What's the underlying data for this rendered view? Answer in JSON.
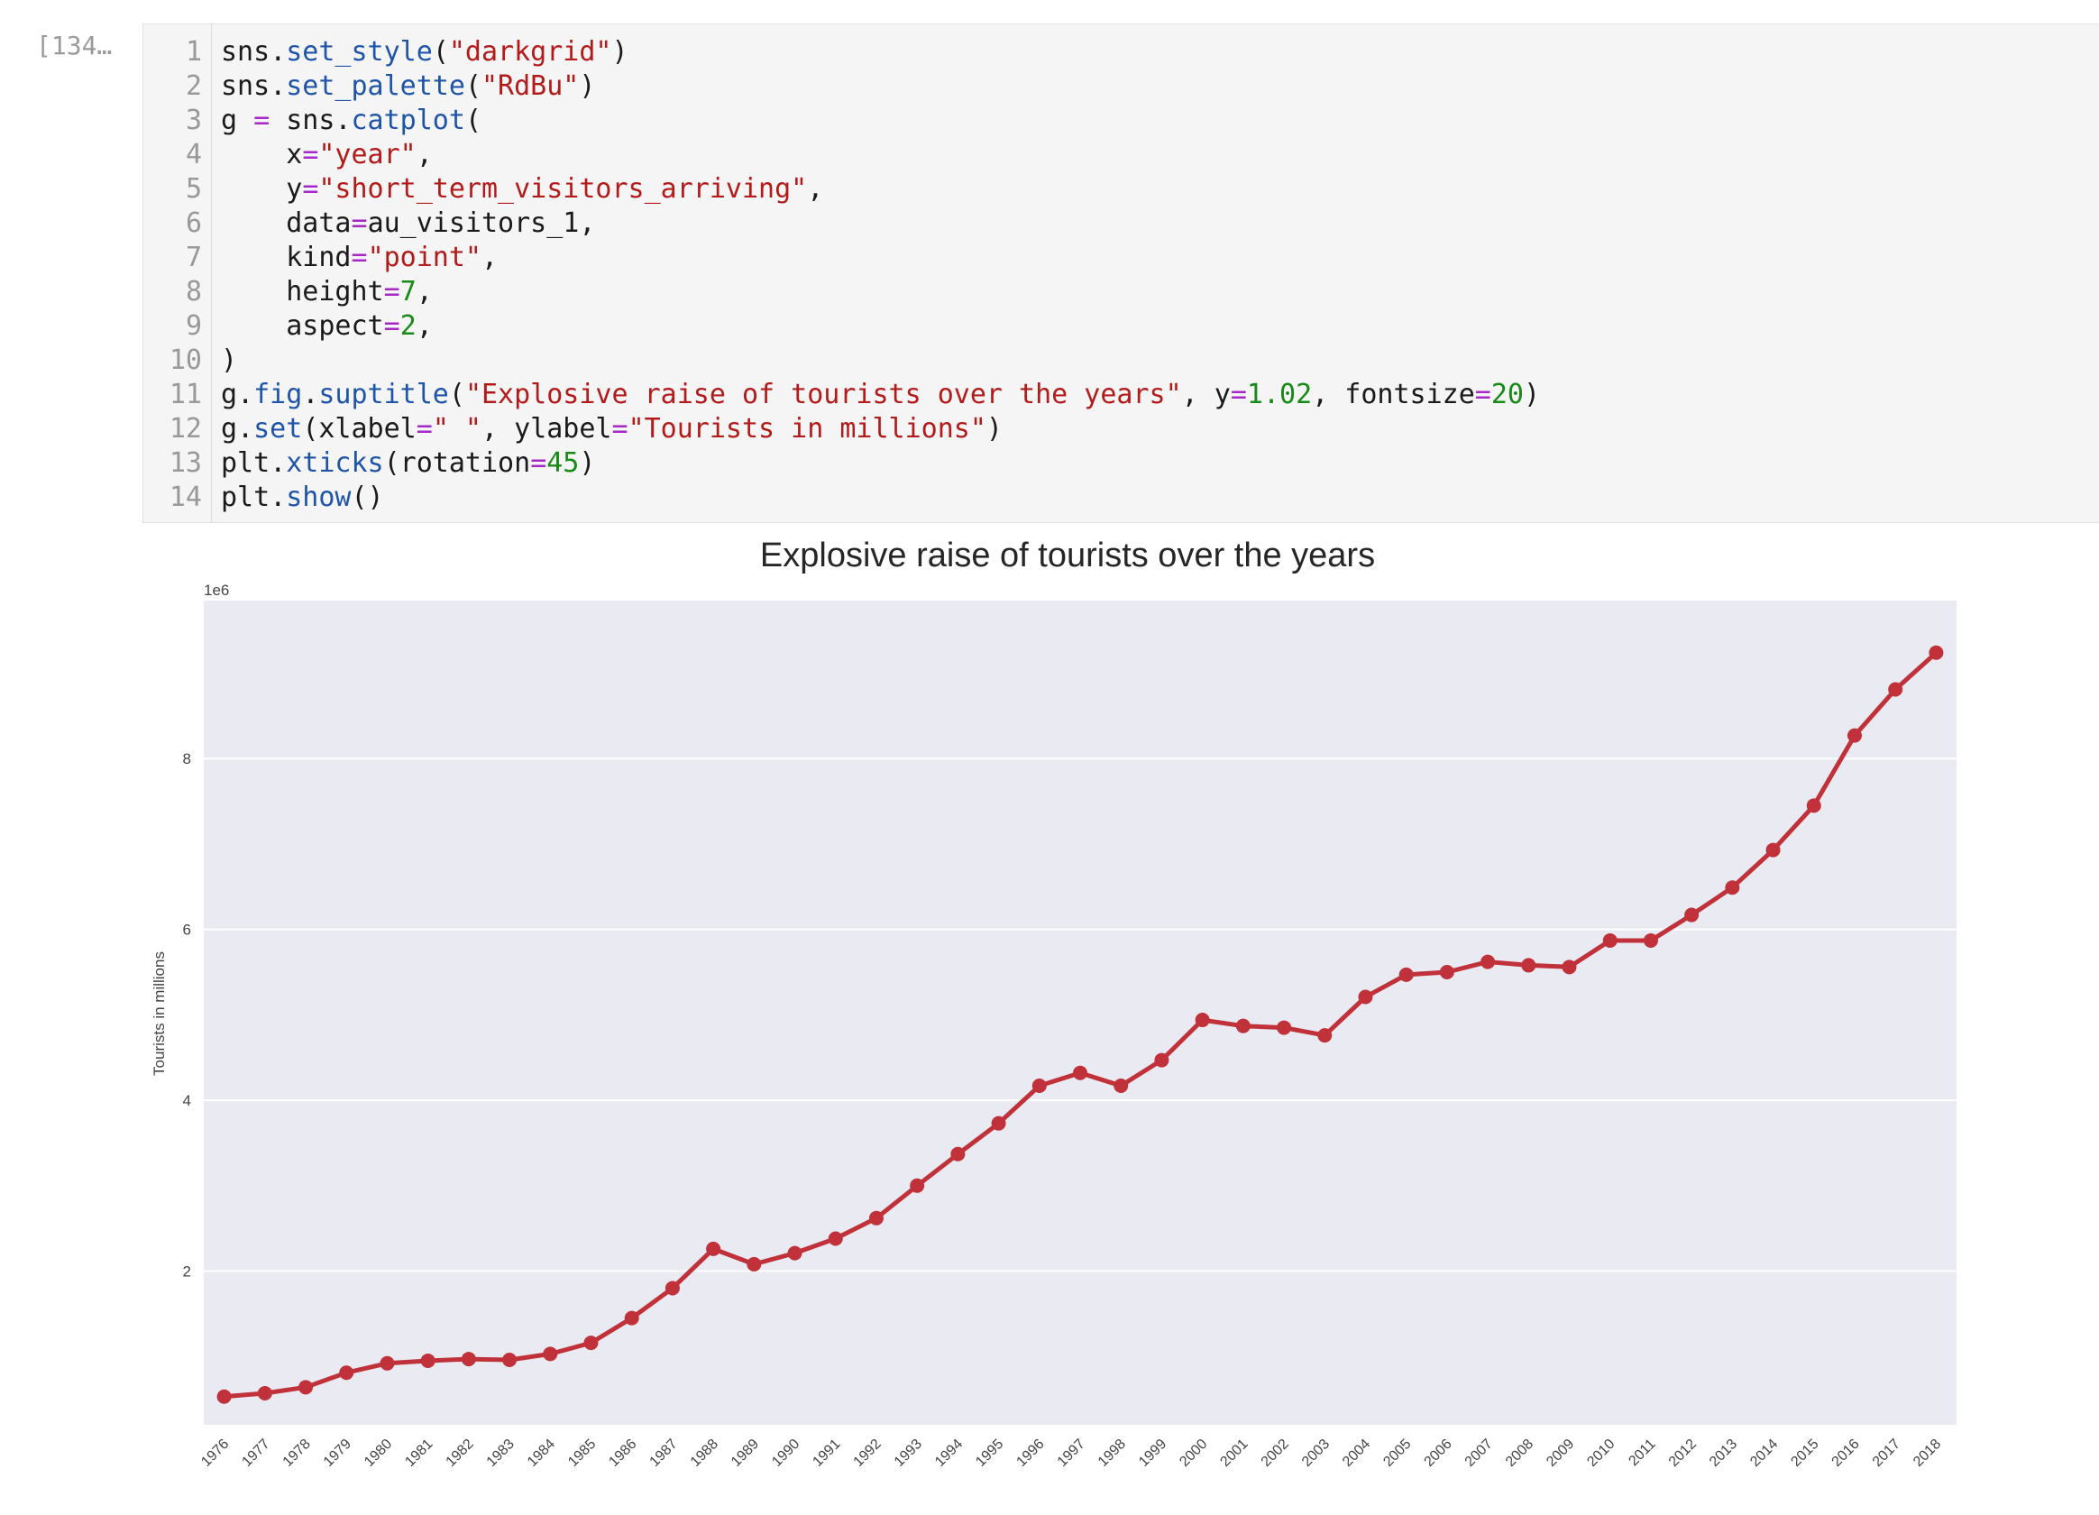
{
  "cell": {
    "execution_count": "[134…",
    "code_lines": [
      [
        {
          "t": "sns",
          "c": "plain"
        },
        {
          "t": ".",
          "c": "plain"
        },
        {
          "t": "set_style",
          "c": "fn"
        },
        {
          "t": "(",
          "c": "plain"
        },
        {
          "t": "\"darkgrid\"",
          "c": "str"
        },
        {
          "t": ")",
          "c": "plain"
        }
      ],
      [
        {
          "t": "sns",
          "c": "plain"
        },
        {
          "t": ".",
          "c": "plain"
        },
        {
          "t": "set_palette",
          "c": "fn"
        },
        {
          "t": "(",
          "c": "plain"
        },
        {
          "t": "\"RdBu\"",
          "c": "str"
        },
        {
          "t": ")",
          "c": "plain"
        }
      ],
      [
        {
          "t": "g ",
          "c": "plain"
        },
        {
          "t": "=",
          "c": "op"
        },
        {
          "t": " sns",
          "c": "plain"
        },
        {
          "t": ".",
          "c": "plain"
        },
        {
          "t": "catplot",
          "c": "fn"
        },
        {
          "t": "(",
          "c": "plain"
        }
      ],
      [
        {
          "t": "    x",
          "c": "plain"
        },
        {
          "t": "=",
          "c": "op"
        },
        {
          "t": "\"year\"",
          "c": "str"
        },
        {
          "t": ",",
          "c": "plain"
        }
      ],
      [
        {
          "t": "    y",
          "c": "plain"
        },
        {
          "t": "=",
          "c": "op"
        },
        {
          "t": "\"short_term_visitors_arriving\"",
          "c": "str"
        },
        {
          "t": ",",
          "c": "plain"
        }
      ],
      [
        {
          "t": "    data",
          "c": "plain"
        },
        {
          "t": "=",
          "c": "op"
        },
        {
          "t": "au_visitors_1,",
          "c": "plain"
        }
      ],
      [
        {
          "t": "    kind",
          "c": "plain"
        },
        {
          "t": "=",
          "c": "op"
        },
        {
          "t": "\"point\"",
          "c": "str"
        },
        {
          "t": ",",
          "c": "plain"
        }
      ],
      [
        {
          "t": "    height",
          "c": "plain"
        },
        {
          "t": "=",
          "c": "op"
        },
        {
          "t": "7",
          "c": "num"
        },
        {
          "t": ",",
          "c": "plain"
        }
      ],
      [
        {
          "t": "    aspect",
          "c": "plain"
        },
        {
          "t": "=",
          "c": "op"
        },
        {
          "t": "2",
          "c": "num"
        },
        {
          "t": ",",
          "c": "plain"
        }
      ],
      [
        {
          "t": ")",
          "c": "plain"
        }
      ],
      [
        {
          "t": "g",
          "c": "plain"
        },
        {
          "t": ".",
          "c": "plain"
        },
        {
          "t": "fig",
          "c": "fn"
        },
        {
          "t": ".",
          "c": "plain"
        },
        {
          "t": "suptitle",
          "c": "fn"
        },
        {
          "t": "(",
          "c": "plain"
        },
        {
          "t": "\"Explosive raise of tourists over the years\"",
          "c": "str"
        },
        {
          "t": ", y",
          "c": "plain"
        },
        {
          "t": "=",
          "c": "op"
        },
        {
          "t": "1.02",
          "c": "num"
        },
        {
          "t": ", fontsize",
          "c": "plain"
        },
        {
          "t": "=",
          "c": "op"
        },
        {
          "t": "20",
          "c": "num"
        },
        {
          "t": ")",
          "c": "plain"
        }
      ],
      [
        {
          "t": "g",
          "c": "plain"
        },
        {
          "t": ".",
          "c": "plain"
        },
        {
          "t": "set",
          "c": "fn"
        },
        {
          "t": "(xlabel",
          "c": "plain"
        },
        {
          "t": "=",
          "c": "op"
        },
        {
          "t": "\" \"",
          "c": "str"
        },
        {
          "t": ", ylabel",
          "c": "plain"
        },
        {
          "t": "=",
          "c": "op"
        },
        {
          "t": "\"Tourists in millions\"",
          "c": "str"
        },
        {
          "t": ")",
          "c": "plain"
        }
      ],
      [
        {
          "t": "plt",
          "c": "plain"
        },
        {
          "t": ".",
          "c": "plain"
        },
        {
          "t": "xticks",
          "c": "fn"
        },
        {
          "t": "(rotation",
          "c": "plain"
        },
        {
          "t": "=",
          "c": "op"
        },
        {
          "t": "45",
          "c": "num"
        },
        {
          "t": ")",
          "c": "plain"
        }
      ],
      [
        {
          "t": "plt",
          "c": "plain"
        },
        {
          "t": ".",
          "c": "plain"
        },
        {
          "t": "show",
          "c": "fn"
        },
        {
          "t": "()",
          "c": "plain"
        }
      ]
    ]
  },
  "chart_data": {
    "type": "line",
    "title": "Explosive raise of tourists over the years",
    "xlabel": "",
    "ylabel": "Tourists in millions",
    "offset_label": "1e6",
    "style": "darkgrid",
    "grid": true,
    "colors": {
      "line": "#c0313a",
      "background": "#eaeaf2",
      "grid": "#ffffff"
    },
    "ylim": [
      0.2,
      9.85
    ],
    "yticks": [
      2,
      4,
      6,
      8
    ],
    "categories": [
      "1976",
      "1977",
      "1978",
      "1979",
      "1980",
      "1981",
      "1982",
      "1983",
      "1984",
      "1985",
      "1986",
      "1987",
      "1988",
      "1989",
      "1990",
      "1991",
      "1992",
      "1993",
      "1994",
      "1995",
      "1996",
      "1997",
      "1998",
      "1999",
      "2000",
      "2001",
      "2002",
      "2003",
      "2004",
      "2005",
      "2006",
      "2007",
      "2008",
      "2009",
      "2010",
      "2011",
      "2012",
      "2013",
      "2014",
      "2015",
      "2016",
      "2017",
      "2018"
    ],
    "values": [
      0.53,
      0.57,
      0.64,
      0.81,
      0.92,
      0.95,
      0.97,
      0.96,
      1.03,
      1.16,
      1.45,
      1.8,
      2.26,
      2.08,
      2.21,
      2.38,
      2.62,
      3.0,
      3.37,
      3.73,
      4.17,
      4.32,
      4.17,
      4.47,
      4.94,
      4.87,
      4.85,
      4.76,
      5.21,
      5.47,
      5.5,
      5.62,
      5.58,
      5.56,
      5.87,
      5.87,
      6.17,
      6.49,
      6.93,
      7.45,
      8.27,
      8.81,
      9.24
    ]
  }
}
